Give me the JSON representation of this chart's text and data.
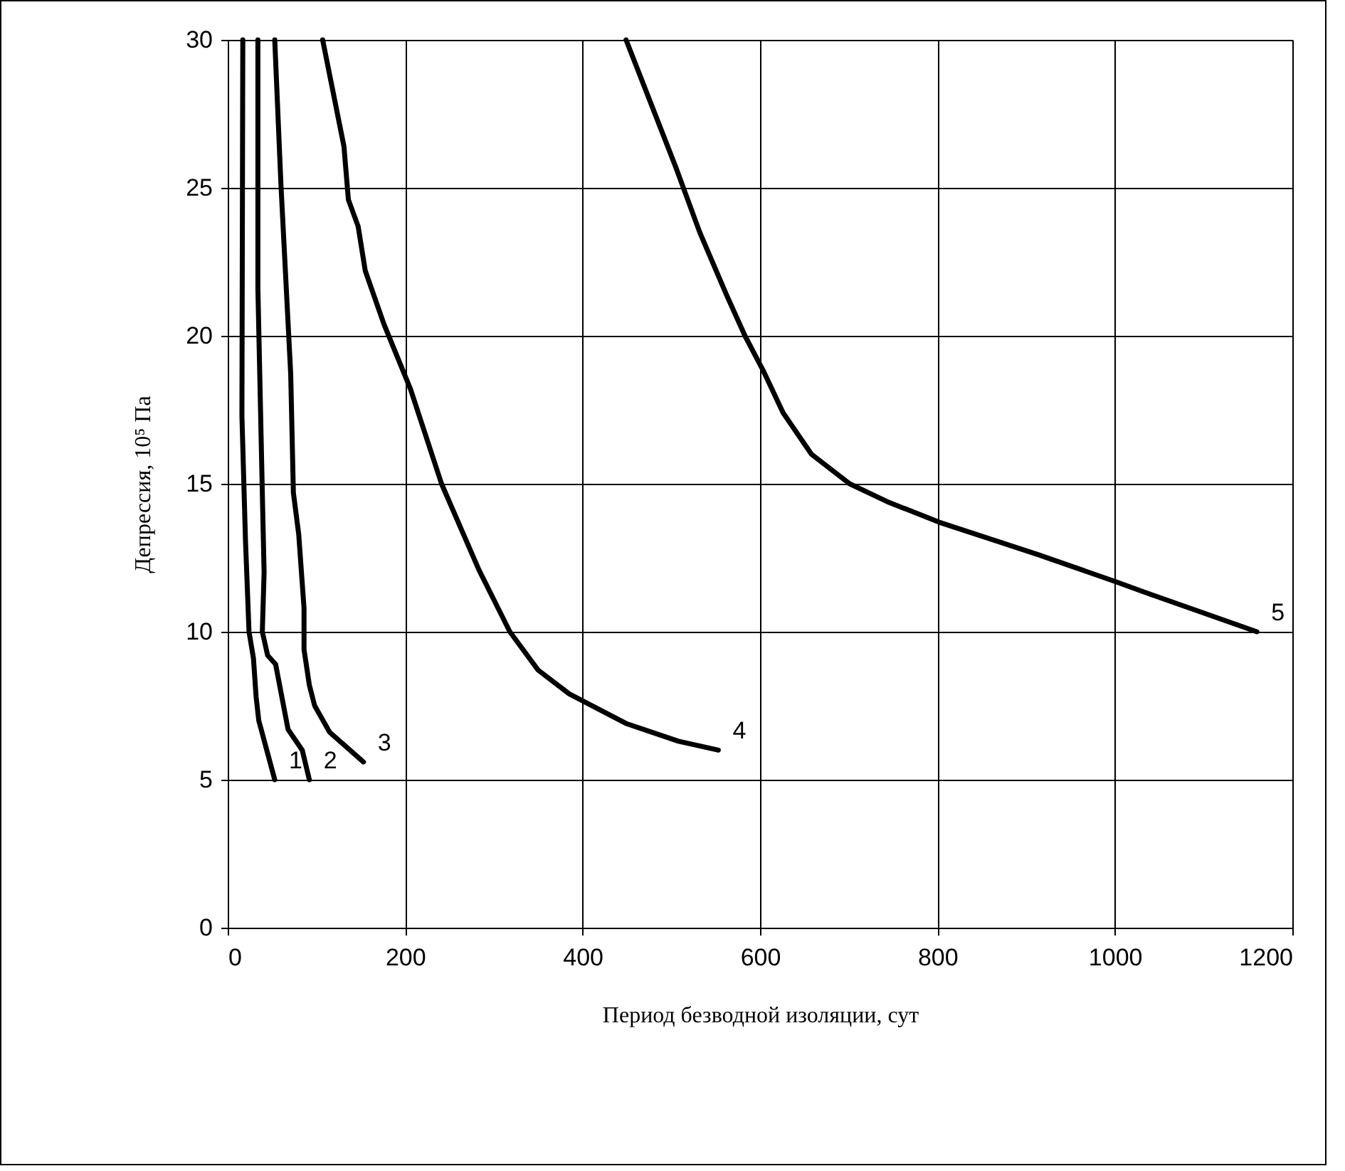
{
  "chart_data": {
    "type": "line",
    "xlabel": "Период безводной изоляции, сут",
    "ylabel": "Депрессия, 10⁵ Па",
    "xlim": [
      0,
      1200
    ],
    "ylim": [
      0,
      30
    ],
    "xticks": [
      0,
      200,
      400,
      600,
      800,
      1000,
      1200
    ],
    "yticks": [
      0,
      5,
      10,
      15,
      20,
      25,
      30
    ],
    "grid": true,
    "legend": false,
    "marker": "none",
    "line_style": "solid",
    "series": [
      {
        "name": "1",
        "color": "#000000",
        "x": [
          17,
          16,
          20,
          24,
          29,
          32,
          35,
          53
        ],
        "values": [
          30,
          17.3,
          13.1,
          10.0,
          9.1,
          7.8,
          7.0,
          5.0
        ]
      },
      {
        "name": "2",
        "color": "#000000",
        "x": [
          34,
          34,
          39,
          41,
          39,
          45,
          54,
          68,
          84,
          92
        ],
        "values": [
          30,
          21.6,
          14.7,
          12.0,
          10.0,
          9.2,
          8.9,
          6.7,
          6.0,
          5.0
        ]
      },
      {
        "name": "3",
        "color": "#000000",
        "x": [
          53,
          60,
          71,
          74,
          80,
          86,
          86,
          92,
          98,
          115,
          153
        ],
        "values": [
          30,
          25.1,
          18.7,
          14.7,
          13.3,
          10.8,
          9.4,
          8.2,
          7.5,
          6.6,
          5.6
        ]
      },
      {
        "name": "4",
        "color": "#000000",
        "x": [
          107,
          131,
          136,
          147,
          155,
          176,
          206,
          241,
          283,
          318,
          350,
          385,
          449,
          508,
          553
        ],
        "values": [
          30,
          26.4,
          24.6,
          23.7,
          22.2,
          20.4,
          18.2,
          15.0,
          12.1,
          10.0,
          8.7,
          7.9,
          6.9,
          6.3,
          6.0
        ]
      },
      {
        "name": "5",
        "color": "#000000",
        "x": [
          449,
          505,
          532,
          562,
          583,
          604,
          626,
          658,
          701,
          743,
          802,
          914,
          1000,
          1037,
          1160
        ],
        "values": [
          30,
          25.7,
          23.5,
          21.4,
          20.0,
          18.8,
          17.4,
          16.0,
          15.0,
          14.4,
          13.7,
          12.6,
          11.7,
          11.3,
          10.0
        ]
      }
    ]
  }
}
